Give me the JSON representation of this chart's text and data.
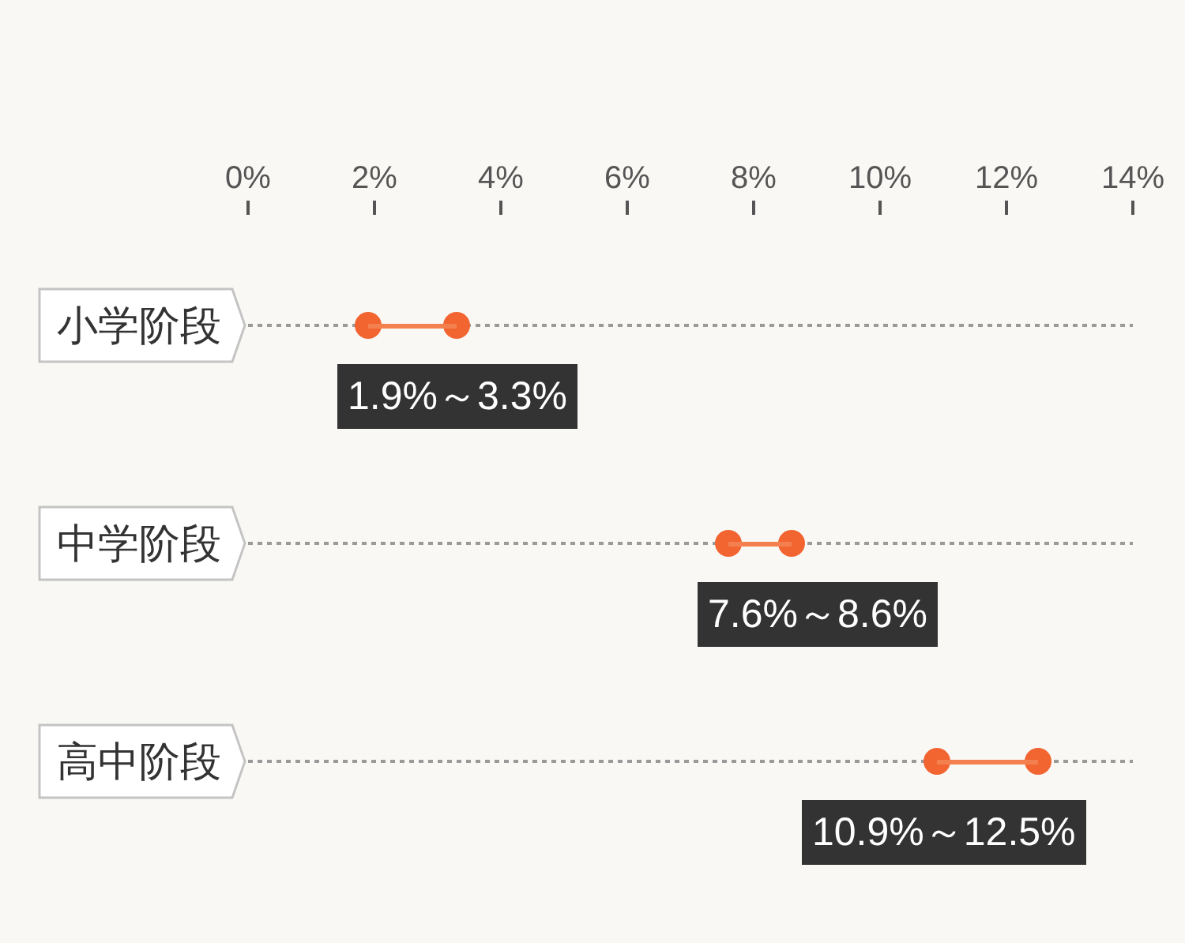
{
  "chart_data": {
    "type": "bar",
    "orientation": "horizontal",
    "categories": [
      "小学阶段",
      "中学阶段",
      "高中阶段"
    ],
    "series": [
      {
        "color": "#f5804f",
        "base": [
          1.9,
          7.6,
          10.9
        ],
        "values": [
          1.4,
          1.0,
          1.6
        ]
      },
      {
        "type": "scatter",
        "color": "#f26430",
        "values": [
          1.9,
          7.6,
          10.9
        ]
      },
      {
        "type": "scatter",
        "color": "#f26430",
        "values": [
          3.3,
          8.6,
          12.5
        ]
      }
    ],
    "marker": "circle",
    "annotations": [
      "1.9%～3.3%",
      "7.6%～8.6%",
      "10.9%～12.5%"
    ],
    "xlim": [
      0,
      14
    ],
    "xticks": [
      {
        "value": 0,
        "label": "0%"
      },
      {
        "value": 2,
        "label": "2%"
      },
      {
        "value": 4,
        "label": "4%"
      },
      {
        "value": 6,
        "label": "6%"
      },
      {
        "value": 8,
        "label": "8%"
      },
      {
        "value": 10,
        "label": "10%"
      },
      {
        "value": 12,
        "label": "12%"
      },
      {
        "value": 14,
        "label": "14%"
      }
    ],
    "grid": "y"
  }
}
